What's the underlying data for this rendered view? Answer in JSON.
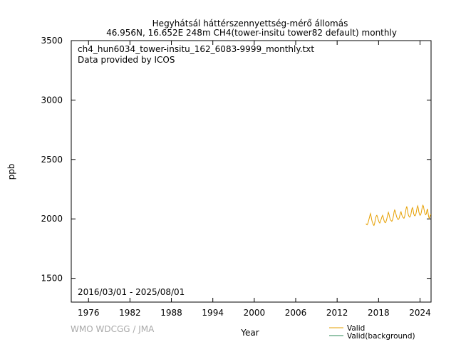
{
  "header": {
    "title_line1": "Hegyhátsál háttérszennyettség-mérő állomás",
    "title_line2": "46.956N, 16.652E 248m    CH4(tower-insitu tower82 default) monthly"
  },
  "annotations": {
    "filename": "ch4_hun6034_tower-insitu_162_6083-9999_monthly.txt",
    "provider": "Data provided by ICOS",
    "date_range": "2016/03/01 - 2025/08/01"
  },
  "watermark": "WMO WDCGG / JMA",
  "colors": {
    "valid": "#e69f00",
    "valid_background": "#2e8b57",
    "watermark": "#a9a9a9"
  },
  "chart_data": {
    "type": "line",
    "xlabel": "Year",
    "ylabel": "ppb",
    "xlim": [
      1973.5,
      2025.6
    ],
    "ylim": [
      1300,
      3500
    ],
    "x_ticks": [
      1976,
      1982,
      1988,
      1994,
      2000,
      2006,
      2012,
      2018,
      2024
    ],
    "y_ticks": [
      1500,
      2000,
      2500,
      3000,
      3500
    ],
    "legend_position": "bottom-right, below plot",
    "grid": false,
    "series": [
      {
        "name": "Valid",
        "color": "#e69f00",
        "x": [
          2016.17,
          2016.25,
          2016.33,
          2016.42,
          2016.5,
          2016.58,
          2016.67,
          2016.75,
          2016.83,
          2016.92,
          2017.0,
          2017.08,
          2017.17,
          2017.25,
          2017.33,
          2017.42,
          2017.5,
          2017.58,
          2017.67,
          2017.75,
          2017.83,
          2017.92,
          2018.0,
          2018.08,
          2018.17,
          2018.25,
          2018.33,
          2018.42,
          2018.5,
          2018.58,
          2018.67,
          2018.75,
          2018.83,
          2018.92,
          2019.0,
          2019.08,
          2019.17,
          2019.25,
          2019.33,
          2019.42,
          2019.5,
          2019.58,
          2019.67,
          2019.75,
          2019.83,
          2019.92,
          2020.0,
          2020.08,
          2020.17,
          2020.25,
          2020.33,
          2020.42,
          2020.5,
          2020.58,
          2020.67,
          2020.75,
          2020.83,
          2020.92,
          2021.0,
          2021.08,
          2021.17,
          2021.25,
          2021.33,
          2021.42,
          2021.5,
          2021.58,
          2021.67,
          2021.75,
          2021.83,
          2021.92,
          2022.0,
          2022.08,
          2022.17,
          2022.25,
          2022.33,
          2022.42,
          2022.5,
          2022.58,
          2022.67,
          2022.75,
          2022.83,
          2022.92,
          2023.0,
          2023.08,
          2023.17,
          2023.25,
          2023.33,
          2023.42,
          2023.5,
          2023.58,
          2023.67,
          2023.75,
          2023.83,
          2023.92,
          2024.0,
          2024.08,
          2024.17,
          2024.25,
          2024.33,
          2024.42,
          2024.5,
          2024.58,
          2024.67,
          2024.75,
          2024.83,
          2024.92,
          2025.0,
          2025.08,
          2025.17,
          2025.25,
          2025.33,
          2025.42,
          2025.5,
          2025.58
        ],
        "values": [
          1960,
          1955,
          1950,
          1958,
          1972,
          1990,
          2010,
          2030,
          2045,
          2020,
          1995,
          1975,
          1962,
          1950,
          1945,
          1960,
          1985,
          2010,
          2025,
          2030,
          2018,
          2000,
          1985,
          1972,
          1965,
          1975,
          1990,
          2005,
          2020,
          2030,
          2015,
          1995,
          1980,
          1970,
          1968,
          1978,
          1995,
          2015,
          2035,
          2055,
          2040,
          2020,
          2000,
          1990,
          1985,
          1980,
          1990,
          2005,
          2030,
          2060,
          2075,
          2065,
          2045,
          2025,
          2010,
          2000,
          1995,
          1998,
          2010,
          2030,
          2050,
          2060,
          2040,
          2025,
          2015,
          2010,
          2005,
          2015,
          2035,
          2065,
          2090,
          2105,
          2080,
          2050,
          2030,
          2020,
          2015,
          2020,
          2035,
          2060,
          2085,
          2095,
          2075,
          2045,
          2030,
          2025,
          2030,
          2045,
          2070,
          2095,
          2110,
          2090,
          2060,
          2040,
          2030,
          2035,
          2050,
          2075,
          2100,
          2115,
          2105,
          2080,
          2055,
          2040,
          2035,
          2045,
          2070,
          2085,
          2050,
          2020,
          2005,
          2015,
          2030,
          2040
        ]
      },
      {
        "name": "Valid(background)",
        "color": "#2e8b57",
        "x": [],
        "values": []
      }
    ]
  }
}
